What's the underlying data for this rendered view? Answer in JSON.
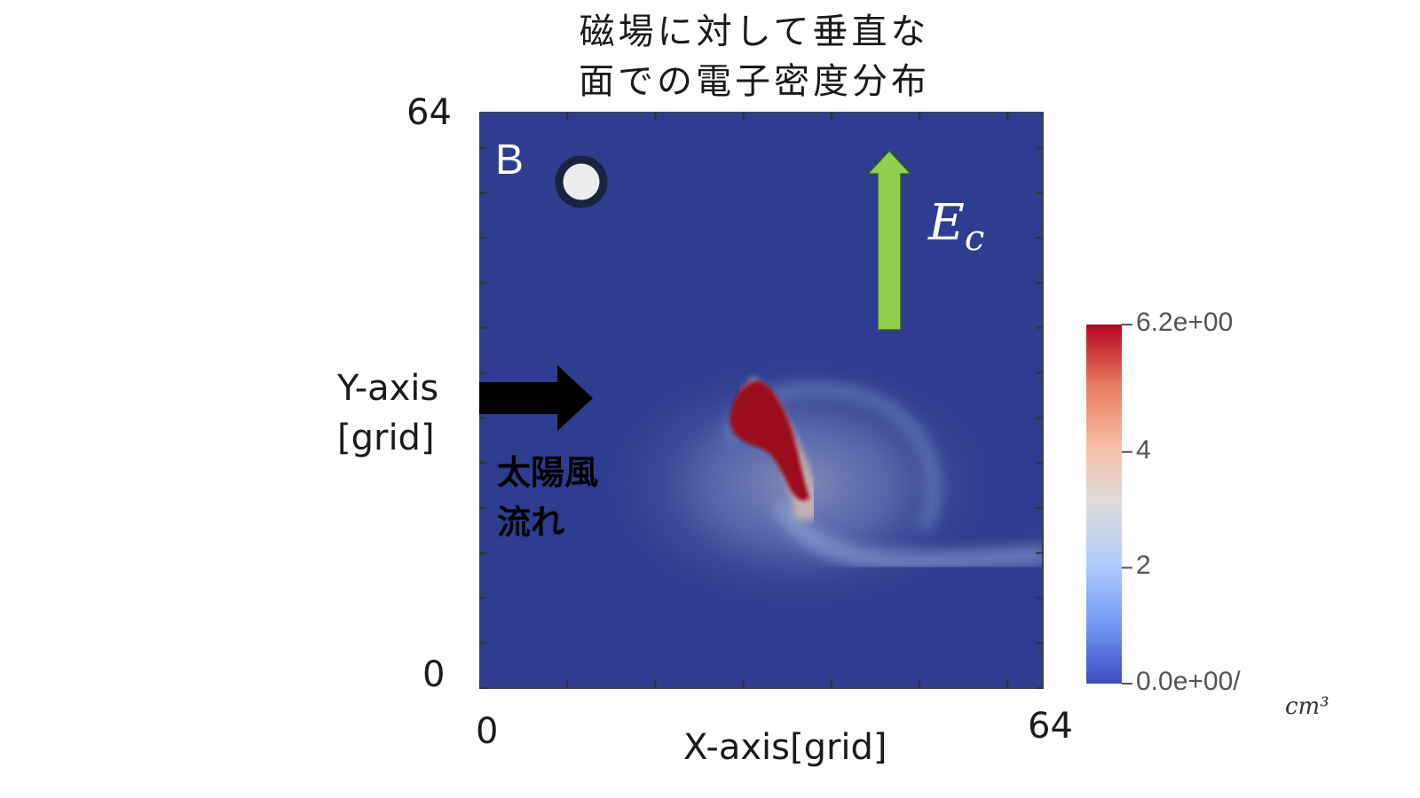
{
  "chart_data": {
    "type": "heatmap",
    "title_lines": [
      "磁場に対して垂直な",
      "面での電子密度分布"
    ],
    "xlabel": "X-axis[grid]",
    "ylabel_lines": [
      "Y-axis",
      "[grid]"
    ],
    "xlim": [
      0,
      64
    ],
    "ylim": [
      0,
      64
    ],
    "x_tick_labels": [
      "0",
      "64"
    ],
    "y_tick_labels": [
      "0",
      "64"
    ],
    "colorbar": {
      "range": [
        0.0,
        6.2
      ],
      "tick_labels": [
        "6.2e+00",
        "4",
        "2",
        "0.0e+00/"
      ],
      "tick_values": [
        6.2,
        4,
        2,
        0
      ],
      "unit": "cm³",
      "colormap": [
        "#3b4cc0",
        "#7396f5",
        "#b0cbfc",
        "#dddcdc",
        "#f6bfa6",
        "#ea7b60",
        "#b40426"
      ]
    },
    "background_value": 0.0,
    "high_density_region": {
      "center": [
        33,
        32
      ],
      "value": 6.2
    },
    "annotations": {
      "magnetic_field": "B",
      "electric_field": "E",
      "electric_field_subscript": "c",
      "solar_wind_lines": [
        "太陽風",
        "流れ"
      ]
    },
    "colors": {
      "background": "#2e3d8f",
      "core": "#9b0a1e",
      "e_arrow": "#8fd14f",
      "wind_arrow": "#000000"
    }
  }
}
